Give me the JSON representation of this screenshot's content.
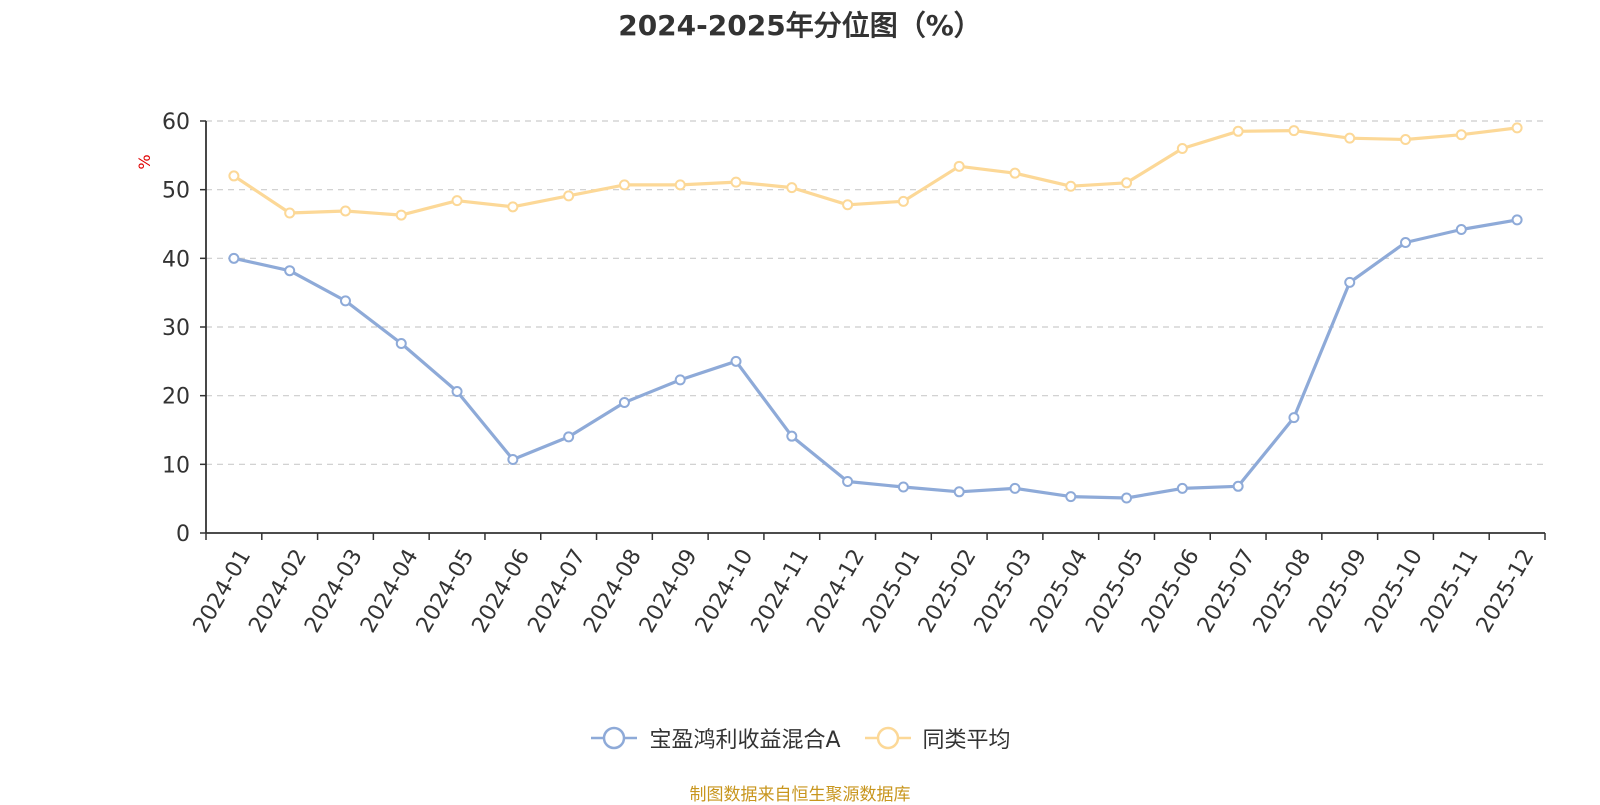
{
  "chart_data": {
    "type": "line",
    "title": "2024-2025年分位图（%）",
    "ylabel": "%",
    "ylim": [
      0,
      60
    ],
    "yticks": [
      0,
      10,
      20,
      30,
      40,
      50,
      60
    ],
    "grid": true,
    "legend_position": "bottom",
    "categories": [
      "2024-01",
      "2024-02",
      "2024-03",
      "2024-04",
      "2024-05",
      "2024-06",
      "2024-07",
      "2024-08",
      "2024-09",
      "2024-10",
      "2024-11",
      "2024-12",
      "2025-01",
      "2025-02",
      "2025-03",
      "2025-04",
      "2025-05",
      "2025-06",
      "2025-07",
      "2025-08",
      "2025-09",
      "2025-10",
      "2025-11",
      "2025-12"
    ],
    "series": [
      {
        "name": "宝盈鸿利收益混合A",
        "color": "#8eaad8",
        "values": [
          40.0,
          38.2,
          33.8,
          27.6,
          20.6,
          10.7,
          14.0,
          19.0,
          22.3,
          25.0,
          14.1,
          7.5,
          6.7,
          6.0,
          6.5,
          5.3,
          5.1,
          6.5,
          6.8,
          16.8,
          36.5,
          42.3,
          44.2,
          45.6
        ]
      },
      {
        "name": "同类平均",
        "color": "#fcd897",
        "values": [
          52.0,
          46.6,
          46.9,
          46.3,
          48.4,
          47.5,
          49.1,
          50.7,
          50.7,
          51.1,
          50.3,
          47.8,
          48.3,
          53.4,
          52.4,
          50.5,
          51.0,
          56.0,
          58.5,
          58.6,
          57.5,
          57.3,
          58.0,
          59.0
        ]
      }
    ]
  },
  "source_note": "制图数据来自恒生聚源数据库"
}
